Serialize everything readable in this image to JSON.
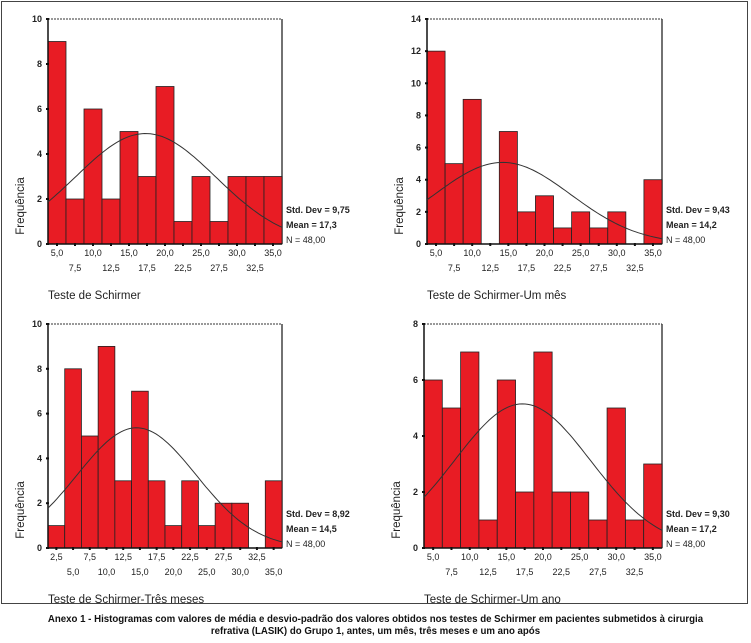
{
  "caption": {
    "line1": "Anexo 1 - Histogramas com valores de média e desvio-padrão dos valores obtidos nos testes de Schirmer em pacientes submetidos à cirurgia",
    "line2": "refrativa (LASIK) do Grupo 1, antes, um mês, três meses e um ano após"
  },
  "colors": {
    "bar": "#e81c24",
    "bar_border": "#222222",
    "curve": "#333333"
  },
  "chart_data": [
    {
      "type": "bar",
      "title": "",
      "xlabel": "Teste de Schirmer",
      "ylabel": "Frequência",
      "ylim": [
        0,
        10
      ],
      "yticks": [
        "0",
        "2",
        "4",
        "6",
        "8",
        "10"
      ],
      "categories": [
        "5,0",
        "7,5",
        "10,0",
        "12,5",
        "15,0",
        "17,5",
        "20,0",
        "22,5",
        "25,0",
        "27,5",
        "30,0",
        "32,5",
        "35,0"
      ],
      "values": [
        9,
        2,
        6,
        2,
        5,
        3,
        7,
        1,
        3,
        1,
        3,
        3,
        3
      ],
      "normal_curve": {
        "mean": 17.3,
        "std": 9.75,
        "n": 48
      },
      "stats": [
        "Std. Dev = 9,75",
        "Mean = 17,3",
        "N = 48,00"
      ]
    },
    {
      "type": "bar",
      "title": "",
      "xlabel": "Teste de Schirmer-Um mês",
      "ylabel": "Frequência",
      "ylim": [
        0,
        14
      ],
      "yticks": [
        "0",
        "2",
        "4",
        "6",
        "8",
        "10",
        "12",
        "14"
      ],
      "categories": [
        "5,0",
        "7,5",
        "10,0",
        "12,5",
        "15,0",
        "17,5",
        "20,0",
        "22,5",
        "25,0",
        "27,5",
        "30,0",
        "32,5",
        "35,0"
      ],
      "values": [
        12,
        5,
        9,
        0,
        7,
        2,
        3,
        1,
        2,
        1,
        2,
        0,
        4
      ],
      "normal_curve": {
        "mean": 14.2,
        "std": 9.43,
        "n": 48
      },
      "stats": [
        "Std. Dev = 9,43",
        "Mean = 14,2",
        "N = 48,00"
      ]
    },
    {
      "type": "bar",
      "title": "",
      "xlabel": "Teste de Schirmer-Três meses",
      "ylabel": "Frequência",
      "ylim": [
        0,
        10
      ],
      "yticks": [
        "0",
        "2",
        "4",
        "6",
        "8",
        "10"
      ],
      "categories": [
        "2,5",
        "5,0",
        "7,5",
        "10,0",
        "12,5",
        "15,0",
        "17,5",
        "20,0",
        "22,5",
        "25,0",
        "27,5",
        "30,0",
        "32,5",
        "35,0"
      ],
      "values": [
        1,
        8,
        5,
        9,
        3,
        7,
        3,
        1,
        3,
        1,
        2,
        2,
        0,
        3
      ],
      "normal_curve": {
        "mean": 14.5,
        "std": 8.92,
        "n": 48
      },
      "stats": [
        "Std. Dev = 8,92",
        "Mean = 14,5",
        "N = 48,00"
      ]
    },
    {
      "type": "bar",
      "title": "",
      "xlabel": "Teste de Schirmer-Um ano",
      "ylabel": "Frequência",
      "ylim": [
        0,
        8
      ],
      "yticks": [
        "0",
        "2",
        "4",
        "6",
        "8"
      ],
      "categories": [
        "5,0",
        "7,5",
        "10,0",
        "12,5",
        "15,0",
        "17,5",
        "20,0",
        "22,5",
        "25,0",
        "27,5",
        "30,0",
        "32,5",
        "35,0"
      ],
      "values": [
        6,
        5,
        7,
        1,
        6,
        2,
        7,
        2,
        2,
        1,
        5,
        1,
        3
      ],
      "normal_curve": {
        "mean": 17.2,
        "std": 9.3,
        "n": 48
      },
      "stats": [
        "Std. Dev = 9,30",
        "Mean = 17,2",
        "N = 48,00"
      ]
    }
  ]
}
